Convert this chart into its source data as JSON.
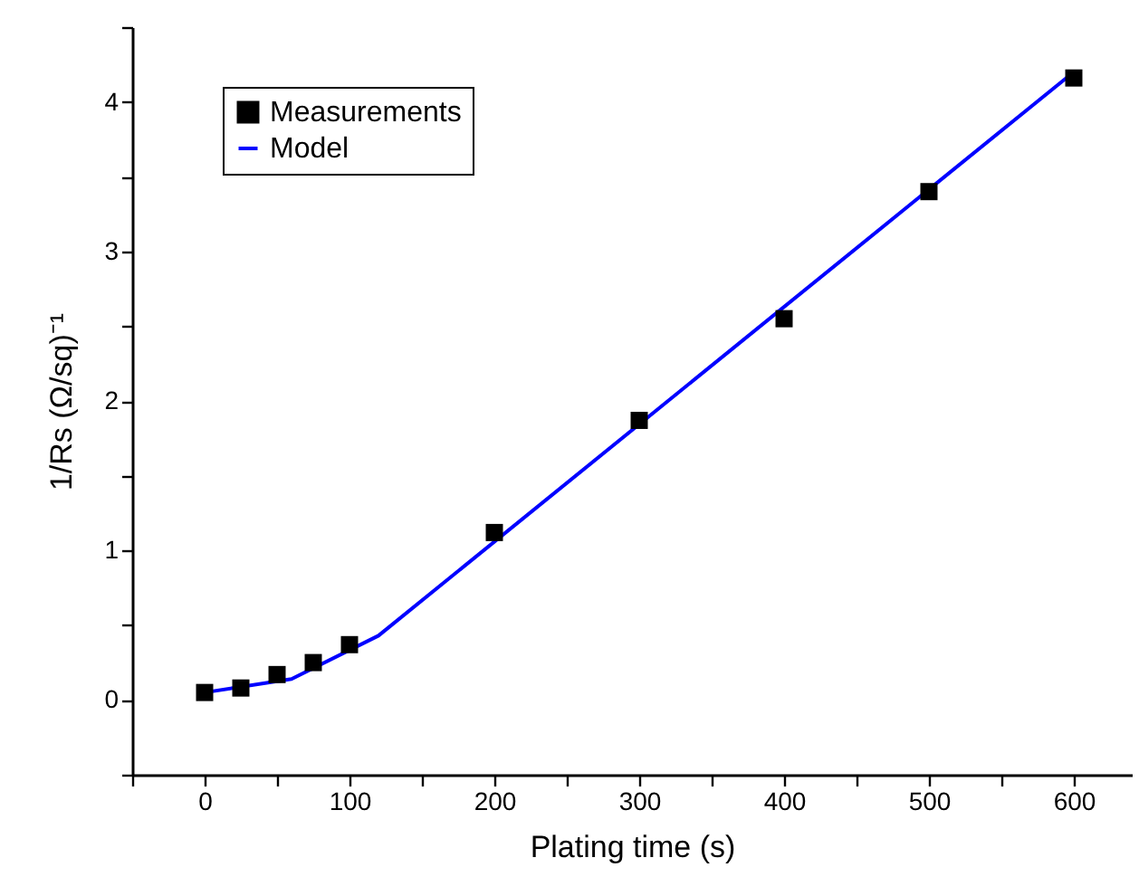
{
  "chart_data": {
    "type": "scatter",
    "xlabel": "Plating time (s)",
    "ylabel": "1/Rs (Ω/sq)⁻¹",
    "x": [
      0,
      25,
      50,
      75,
      100,
      200,
      300,
      400,
      500,
      600
    ],
    "series": [
      {
        "name": "Measurements",
        "color": "#000000",
        "marker": "square",
        "values": [
          0.05,
          0.08,
          0.17,
          0.25,
          0.37,
          1.12,
          1.87,
          2.55,
          3.4,
          4.16
        ]
      },
      {
        "name": "Model",
        "type": "line",
        "color": "#0000ff",
        "line_style": "solid",
        "x": [
          0,
          60,
          120,
          600
        ],
        "values": [
          0.05,
          0.14,
          0.43,
          4.2
        ]
      }
    ],
    "xlim": [
      -50,
      640
    ],
    "ylim": [
      -0.5,
      4.5
    ],
    "xticks": [
      {
        "value": -50,
        "label": null
      },
      0,
      {
        "value": 50,
        "label": null
      },
      100,
      {
        "value": 150,
        "label": null
      },
      200,
      {
        "value": 250,
        "label": null
      },
      300,
      {
        "value": 350,
        "label": null
      },
      400,
      {
        "value": 450,
        "label": null
      },
      500,
      {
        "value": 550,
        "label": null
      },
      600
    ],
    "yticks": [
      {
        "value": -0.5,
        "label": null
      },
      0,
      {
        "value": 0.5,
        "label": null
      },
      1,
      {
        "value": 1.5,
        "label": null
      },
      2,
      {
        "value": 2.5,
        "label": null
      },
      3,
      {
        "value": 3.5,
        "label": null
      },
      4,
      {
        "value": 4.5,
        "label": null
      }
    ],
    "grid": false,
    "legend": "top left"
  }
}
